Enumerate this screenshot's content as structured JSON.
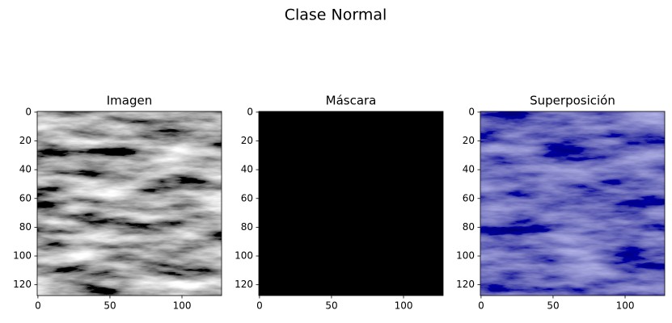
{
  "title": "Clase Normal",
  "chart_data": [
    {
      "type": "image",
      "title": "Imagen",
      "xlim": [
        -0.5,
        127.5
      ],
      "ylim": [
        127.5,
        -0.5
      ],
      "xticks": [
        0,
        50,
        100
      ],
      "yticks": [
        0,
        20,
        40,
        60,
        80,
        100,
        120
      ],
      "color": "gray"
    },
    {
      "type": "image",
      "title": "Máscara",
      "xlim": [
        -0.5,
        127.5
      ],
      "ylim": [
        127.5,
        -0.5
      ],
      "xticks": [
        0,
        50,
        100
      ],
      "yticks": [
        0,
        20,
        40,
        60,
        80,
        100,
        120
      ],
      "color": "black"
    },
    {
      "type": "image",
      "title": "Superposición",
      "xlim": [
        -0.5,
        127.5
      ],
      "ylim": [
        127.5,
        -0.5
      ],
      "xticks": [
        0,
        50,
        100
      ],
      "yticks": [
        0,
        20,
        40,
        60,
        80,
        100,
        120
      ],
      "color": "navy"
    }
  ]
}
